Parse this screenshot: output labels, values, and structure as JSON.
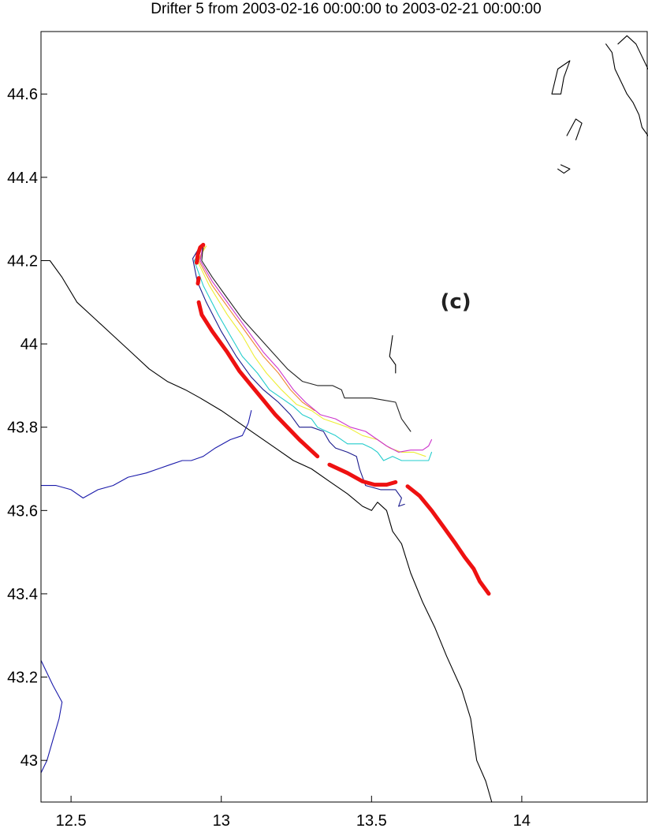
{
  "title": "Drifter 5 from 2003-02-16 00:00:00 to 2003-02-21 00:00:00",
  "panel_label": "(c)",
  "colors": {
    "observed": "#ee1111",
    "coast": "#000000",
    "river": "#1a1aaa",
    "models": [
      "#1a1a8c",
      "#22cccc",
      "#eeee33",
      "#ee8833",
      "#cc33cc",
      "#222222"
    ]
  },
  "axes": {
    "xlim": [
      12.4,
      14.42
    ],
    "ylim": [
      42.9,
      44.75
    ],
    "xticks": [
      {
        "value": 12.5,
        "label": "12.5"
      },
      {
        "value": 13,
        "label": "13"
      },
      {
        "value": 13.5,
        "label": "13.5"
      },
      {
        "value": 14,
        "label": "14"
      }
    ],
    "yticks": [
      {
        "value": 43,
        "label": "43"
      },
      {
        "value": 43.2,
        "label": "43.2"
      },
      {
        "value": 43.4,
        "label": "43.4"
      },
      {
        "value": 43.6,
        "label": "43.6"
      },
      {
        "value": 43.8,
        "label": "43.8"
      },
      {
        "value": 44,
        "label": "44"
      },
      {
        "value": 44.2,
        "label": "44.2"
      },
      {
        "value": 44.4,
        "label": "44.4"
      },
      {
        "value": 44.6,
        "label": "44.6"
      }
    ]
  },
  "chart_data": {
    "type": "line",
    "xlim": [
      12.4,
      14.42
    ],
    "ylim": [
      42.9,
      44.75
    ],
    "grid": false,
    "series": [
      {
        "role": "observed",
        "segments": [
          [
            [
              12.925,
              44.1
            ],
            [
              12.935,
              44.07
            ],
            [
              12.97,
              44.03
            ],
            [
              13.02,
              43.98
            ],
            [
              13.06,
              43.935
            ],
            [
              13.1,
              43.9
            ],
            [
              13.14,
              43.865
            ],
            [
              13.18,
              43.83
            ],
            [
              13.22,
              43.8
            ],
            [
              13.26,
              43.77
            ],
            [
              13.32,
              43.73
            ]
          ],
          [
            [
              13.36,
              43.71
            ],
            [
              13.42,
              43.69
            ],
            [
              13.47,
              43.67
            ],
            [
              13.51,
              43.662
            ],
            [
              13.55,
              43.662
            ],
            [
              13.58,
              43.668
            ]
          ],
          [
            [
              13.62,
              43.658
            ],
            [
              13.66,
              43.635
            ],
            [
              13.7,
              43.6
            ],
            [
              13.74,
              43.56
            ],
            [
              13.78,
              43.52
            ],
            [
              13.81,
              43.488
            ],
            [
              13.84,
              43.46
            ],
            [
              13.86,
              43.43
            ],
            [
              13.89,
              43.4
            ]
          ],
          [
            [
              12.918,
              44.195
            ],
            [
              12.922,
              44.215
            ],
            [
              12.93,
              44.232
            ],
            [
              12.94,
              44.238
            ]
          ],
          [
            [
              12.922,
              44.145
            ],
            [
              12.925,
              44.158
            ]
          ]
        ]
      },
      {
        "role": "model",
        "color_index": 0,
        "points": [
          [
            12.93,
            44.235
          ],
          [
            12.905,
            44.205
          ],
          [
            12.92,
            44.15
          ],
          [
            12.95,
            44.1
          ],
          [
            13.0,
            44.03
          ],
          [
            13.05,
            43.97
          ],
          [
            13.1,
            43.92
          ],
          [
            13.14,
            43.89
          ],
          [
            13.19,
            43.86
          ],
          [
            13.23,
            43.83
          ],
          [
            13.26,
            43.8
          ],
          [
            13.3,
            43.8
          ],
          [
            13.34,
            43.79
          ],
          [
            13.36,
            43.765
          ],
          [
            13.38,
            43.75
          ],
          [
            13.42,
            43.74
          ],
          [
            13.45,
            43.73
          ],
          [
            13.46,
            43.7
          ],
          [
            13.48,
            43.66
          ],
          [
            13.53,
            43.65
          ],
          [
            13.58,
            43.65
          ],
          [
            13.6,
            43.63
          ],
          [
            13.59,
            43.61
          ],
          [
            13.61,
            43.615
          ]
        ]
      },
      {
        "role": "model",
        "color_index": 1,
        "points": [
          [
            12.94,
            44.235
          ],
          [
            12.91,
            44.2
          ],
          [
            12.94,
            44.14
          ],
          [
            12.99,
            44.07
          ],
          [
            13.03,
            44.02
          ],
          [
            13.07,
            43.97
          ],
          [
            13.12,
            43.93
          ],
          [
            13.16,
            43.89
          ],
          [
            13.2,
            43.87
          ],
          [
            13.24,
            43.85
          ],
          [
            13.27,
            43.83
          ],
          [
            13.3,
            43.82
          ],
          [
            13.32,
            43.8
          ],
          [
            13.35,
            43.79
          ],
          [
            13.38,
            43.78
          ],
          [
            13.42,
            43.76
          ],
          [
            13.47,
            43.76
          ],
          [
            13.5,
            43.75
          ],
          [
            13.52,
            43.74
          ],
          [
            13.54,
            43.72
          ],
          [
            13.57,
            43.73
          ],
          [
            13.6,
            43.72
          ],
          [
            13.65,
            43.72
          ],
          [
            13.69,
            43.72
          ],
          [
            13.7,
            43.74
          ]
        ]
      },
      {
        "role": "model",
        "color_index": 2,
        "points": [
          [
            12.95,
            44.235
          ],
          [
            12.92,
            44.2
          ],
          [
            12.96,
            44.14
          ],
          [
            13.02,
            44.07
          ],
          [
            13.07,
            44.02
          ],
          [
            13.11,
            43.97
          ],
          [
            13.15,
            43.93
          ],
          [
            13.2,
            43.89
          ],
          [
            13.25,
            43.855
          ],
          [
            13.3,
            43.84
          ],
          [
            13.34,
            43.82
          ],
          [
            13.38,
            43.81
          ],
          [
            13.42,
            43.8
          ],
          [
            13.47,
            43.78
          ],
          [
            13.52,
            43.77
          ],
          [
            13.56,
            43.75
          ],
          [
            13.6,
            43.74
          ],
          [
            13.64,
            43.74
          ],
          [
            13.68,
            43.73
          ]
        ]
      },
      {
        "role": "model",
        "color_index": 3,
        "points": [
          [
            12.945,
            44.235
          ],
          [
            12.925,
            44.2
          ],
          [
            12.97,
            44.14
          ],
          [
            13.03,
            44.08
          ],
          [
            13.09,
            44.02
          ],
          [
            13.14,
            43.97
          ],
          [
            13.19,
            43.93
          ],
          [
            13.23,
            43.89
          ],
          [
            13.27,
            43.86
          ],
          [
            13.31,
            43.84
          ]
        ]
      },
      {
        "role": "model",
        "color_index": 4,
        "points": [
          [
            12.94,
            44.24
          ],
          [
            12.93,
            44.2
          ],
          [
            12.97,
            44.15
          ],
          [
            13.03,
            44.09
          ],
          [
            13.09,
            44.03
          ],
          [
            13.14,
            43.98
          ],
          [
            13.19,
            43.94
          ],
          [
            13.24,
            43.89
          ],
          [
            13.28,
            43.86
          ],
          [
            13.33,
            43.83
          ],
          [
            13.38,
            43.82
          ],
          [
            13.43,
            43.8
          ],
          [
            13.48,
            43.79
          ],
          [
            13.52,
            43.77
          ],
          [
            13.55,
            43.755
          ],
          [
            13.59,
            43.74
          ],
          [
            13.63,
            43.745
          ],
          [
            13.67,
            43.745
          ],
          [
            13.69,
            43.755
          ],
          [
            13.7,
            43.77
          ]
        ]
      },
      {
        "role": "model",
        "color_index": 5,
        "points": [
          [
            12.94,
            44.238
          ],
          [
            12.935,
            44.2
          ],
          [
            12.97,
            44.16
          ],
          [
            13.02,
            44.11
          ],
          [
            13.07,
            44.06
          ],
          [
            13.12,
            44.02
          ],
          [
            13.17,
            43.98
          ],
          [
            13.22,
            43.94
          ],
          [
            13.27,
            43.91
          ],
          [
            13.32,
            43.9
          ],
          [
            13.37,
            43.9
          ],
          [
            13.4,
            43.89
          ],
          [
            13.41,
            43.87
          ],
          [
            13.45,
            43.87
          ],
          [
            13.5,
            43.87
          ],
          [
            13.58,
            43.86
          ],
          [
            13.59,
            43.84
          ],
          [
            13.6,
            43.82
          ],
          [
            13.63,
            43.79
          ]
        ]
      },
      {
        "role": "coast",
        "points": [
          [
            12.4,
            44.2
          ],
          [
            12.43,
            44.2
          ],
          [
            12.47,
            44.16
          ],
          [
            12.52,
            44.1
          ],
          [
            12.58,
            44.06
          ],
          [
            12.64,
            44.02
          ],
          [
            12.7,
            43.98
          ],
          [
            12.76,
            43.94
          ],
          [
            12.82,
            43.91
          ],
          [
            12.88,
            43.89
          ],
          [
            12.93,
            43.87
          ],
          [
            13.0,
            43.84
          ],
          [
            13.06,
            43.81
          ],
          [
            13.12,
            43.78
          ],
          [
            13.18,
            43.75
          ],
          [
            13.24,
            43.72
          ],
          [
            13.3,
            43.7
          ],
          [
            13.36,
            43.67
          ],
          [
            13.42,
            43.64
          ],
          [
            13.47,
            43.61
          ],
          [
            13.5,
            43.6
          ],
          [
            13.52,
            43.62
          ],
          [
            13.55,
            43.6
          ],
          [
            13.57,
            43.55
          ],
          [
            13.6,
            43.52
          ],
          [
            13.63,
            43.45
          ],
          [
            13.67,
            43.38
          ],
          [
            13.71,
            43.32
          ],
          [
            13.75,
            43.25
          ],
          [
            13.8,
            43.17
          ],
          [
            13.83,
            43.1
          ],
          [
            13.85,
            43.0
          ],
          [
            13.88,
            42.95
          ],
          [
            13.9,
            42.9
          ]
        ]
      },
      {
        "role": "coast",
        "points": [
          [
            13.57,
            44.02
          ],
          [
            13.56,
            43.97
          ],
          [
            13.58,
            43.95
          ],
          [
            13.58,
            43.93
          ]
        ]
      },
      {
        "role": "river",
        "points": [
          [
            12.4,
            43.66
          ],
          [
            12.45,
            43.66
          ],
          [
            12.5,
            43.65
          ],
          [
            12.54,
            43.63
          ],
          [
            12.59,
            43.65
          ],
          [
            12.64,
            43.66
          ],
          [
            12.69,
            43.68
          ],
          [
            12.75,
            43.69
          ],
          [
            12.79,
            43.7
          ],
          [
            12.83,
            43.71
          ],
          [
            12.87,
            43.72
          ],
          [
            12.9,
            43.72
          ],
          [
            12.94,
            43.73
          ],
          [
            12.98,
            43.75
          ],
          [
            13.03,
            43.77
          ],
          [
            13.07,
            43.78
          ],
          [
            13.09,
            43.81
          ],
          [
            13.1,
            43.84
          ]
        ]
      },
      {
        "role": "river",
        "points": [
          [
            12.4,
            43.24
          ],
          [
            12.44,
            43.18
          ],
          [
            12.47,
            43.14
          ],
          [
            12.46,
            43.1
          ],
          [
            12.44,
            43.05
          ],
          [
            12.42,
            43.0
          ],
          [
            12.4,
            42.97
          ]
        ]
      },
      {
        "role": "coast",
        "points": [
          [
            14.1,
            44.6
          ],
          [
            14.12,
            44.66
          ],
          [
            14.16,
            44.68
          ],
          [
            14.14,
            44.64
          ],
          [
            14.13,
            44.6
          ],
          [
            14.1,
            44.6
          ]
        ]
      },
      {
        "role": "coast",
        "points": [
          [
            14.15,
            44.5
          ],
          [
            14.18,
            44.54
          ],
          [
            14.2,
            44.53
          ],
          [
            14.18,
            44.49
          ]
        ]
      },
      {
        "role": "coast",
        "points": [
          [
            14.28,
            44.72
          ],
          [
            14.3,
            44.7
          ],
          [
            14.31,
            44.66
          ],
          [
            14.33,
            44.63
          ],
          [
            14.35,
            44.6
          ],
          [
            14.37,
            44.58
          ],
          [
            14.39,
            44.55
          ],
          [
            14.4,
            44.52
          ],
          [
            14.42,
            44.5
          ]
        ]
      },
      {
        "role": "coast",
        "points": [
          [
            14.32,
            44.72
          ],
          [
            14.35,
            44.74
          ],
          [
            14.38,
            44.72
          ],
          [
            14.4,
            44.69
          ],
          [
            14.42,
            44.66
          ]
        ]
      },
      {
        "role": "coast",
        "points": [
          [
            14.13,
            44.43
          ],
          [
            14.16,
            44.42
          ],
          [
            14.14,
            44.41
          ],
          [
            14.12,
            44.42
          ]
        ]
      }
    ]
  }
}
